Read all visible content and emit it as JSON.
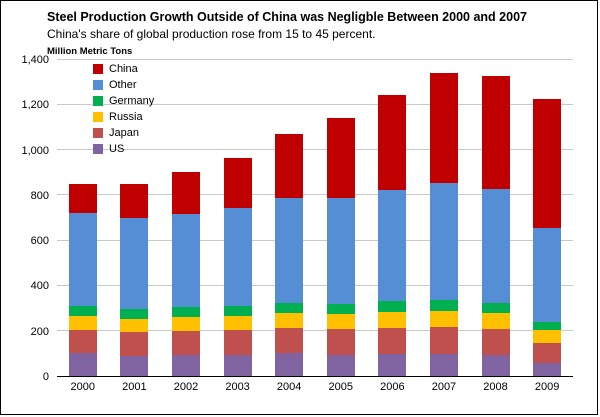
{
  "title": "Steel Production Growth Outside of China was Negligble Between 2000 and 2007",
  "subtitle": "China's share of global production rose from 15 to 45 percent.",
  "axis_unit": "Million Metric Tons",
  "chart_data": {
    "type": "bar",
    "stacked": true,
    "title": "Steel Production Growth Outside of China was Negligble Between 2000 and 2007",
    "subtitle": "China's share of global production rose from 15 to 45 percent.",
    "ylabel": "Million Metric Tons",
    "xlabel": "",
    "ylim": [
      0,
      1400
    ],
    "ytick_step": 200,
    "grid": true,
    "legend_position": "top-left-inside",
    "categories": [
      "2000",
      "2001",
      "2002",
      "2003",
      "2004",
      "2005",
      "2006",
      "2007",
      "2008",
      "2009"
    ],
    "series": [
      {
        "name": "US",
        "color": "#8064A2",
        "values": [
          100,
          90,
          92,
          94,
          100,
          95,
          98,
          98,
          91,
          58
        ]
      },
      {
        "name": "Japan",
        "color": "#C0504D",
        "values": [
          106,
          103,
          108,
          110,
          113,
          112,
          116,
          120,
          119,
          87
        ]
      },
      {
        "name": "Russia",
        "color": "#FFC000",
        "values": [
          59,
          59,
          60,
          61,
          66,
          66,
          71,
          72,
          69,
          60
        ]
      },
      {
        "name": "Germany",
        "color": "#00B050",
        "values": [
          46,
          45,
          45,
          45,
          46,
          45,
          47,
          49,
          46,
          33
        ]
      },
      {
        "name": "Other",
        "color": "#558ED5",
        "values": [
          410,
          403,
          415,
          435,
          465,
          472,
          493,
          516,
          505,
          417
        ]
      },
      {
        "name": "China",
        "color": "#C00000",
        "values": [
          129,
          151,
          182,
          222,
          283,
          353,
          419,
          489,
          500,
          574
        ]
      }
    ],
    "legend_order": [
      "China",
      "Other",
      "Germany",
      "Russia",
      "Japan",
      "US"
    ],
    "totals": [
      850,
      851,
      902,
      967,
      1073,
      1143,
      1244,
      1344,
      1330,
      1229
    ]
  }
}
